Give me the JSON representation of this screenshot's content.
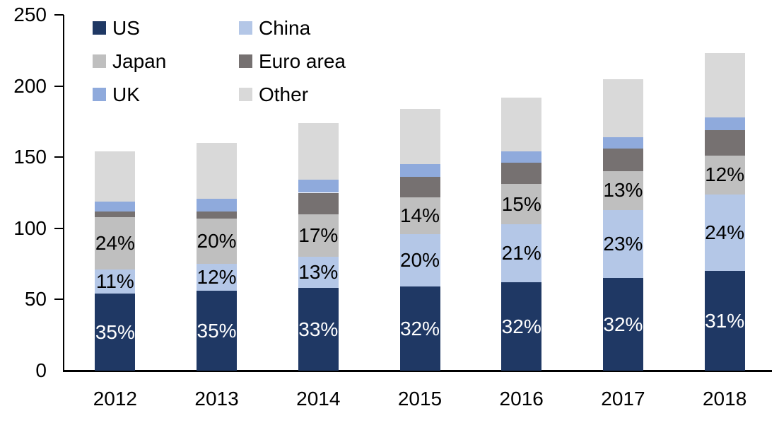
{
  "chart_data": {
    "type": "bar",
    "stacked": true,
    "title": "",
    "xlabel": "",
    "ylabel": "",
    "categories": [
      "2012",
      "2013",
      "2014",
      "2015",
      "2016",
      "2017",
      "2018"
    ],
    "series": [
      {
        "name": "US",
        "color": "#1F3864",
        "values": [
          54,
          56,
          58,
          59,
          62,
          65,
          70
        ],
        "labels": [
          "35%",
          "35%",
          "33%",
          "32%",
          "32%",
          "32%",
          "31%"
        ],
        "label_color": "#FFFFFF"
      },
      {
        "name": "China",
        "color": "#B4C7E7",
        "values": [
          17,
          19,
          22,
          37,
          41,
          48,
          54
        ],
        "labels": [
          "11%",
          "12%",
          "13%",
          "20%",
          "21%",
          "23%",
          "24%"
        ],
        "label_color": "#000000"
      },
      {
        "name": "Japan",
        "color": "#BFBFBF",
        "values": [
          37,
          32,
          30,
          26,
          28,
          27,
          27
        ],
        "labels": [
          "24%",
          "20%",
          "17%",
          "14%",
          "15%",
          "13%",
          "12%"
        ],
        "label_color": "#000000"
      },
      {
        "name": "Euro area",
        "color": "#767171",
        "values": [
          4,
          5,
          15,
          14,
          15,
          16,
          18
        ],
        "labels": [
          "",
          "",
          "",
          "",
          "",
          "",
          ""
        ],
        "label_color": "#000000"
      },
      {
        "name": "UK",
        "color": "#8FAADC",
        "values": [
          7,
          9,
          9,
          9,
          8,
          8,
          9
        ],
        "labels": [
          "",
          "",
          "",
          "",
          "",
          "",
          ""
        ],
        "label_color": "#000000"
      },
      {
        "name": "Other",
        "color": "#D9D9D9",
        "values": [
          35,
          39,
          40,
          39,
          38,
          41,
          45
        ],
        "labels": [
          "",
          "",
          "",
          "",
          "",
          "",
          ""
        ],
        "label_color": "#000000"
      }
    ],
    "totals": [
      154,
      160,
      174,
      184,
      192,
      205,
      223
    ],
    "ylim": [
      0,
      250
    ],
    "yticks": [
      0,
      50,
      100,
      150,
      200,
      250
    ],
    "xticks": [
      "2012",
      "2013",
      "2014",
      "2015",
      "2016",
      "2017",
      "2018"
    ],
    "grid": false,
    "legend_position": "top-left",
    "legend_columns": 2,
    "legend_order": [
      "US",
      "China",
      "Japan",
      "Euro area",
      "UK",
      "Other"
    ]
  }
}
